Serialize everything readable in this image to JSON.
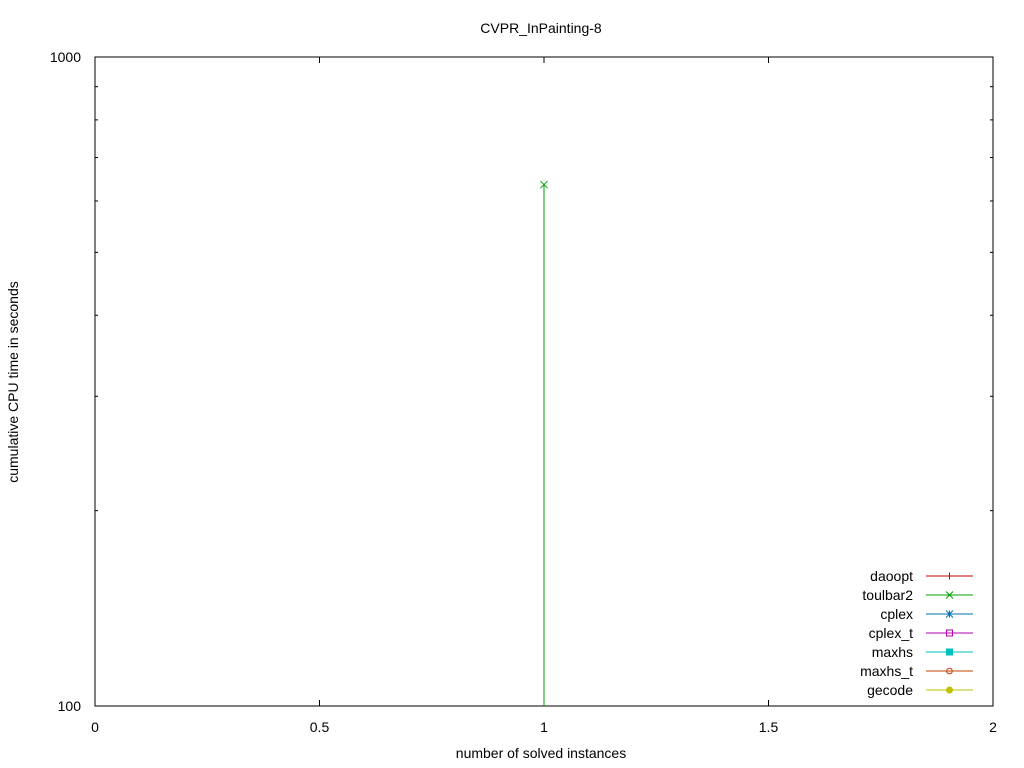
{
  "chart_data": {
    "type": "line",
    "title": "CVPR_InPainting-8",
    "xlabel": "number of solved instances",
    "ylabel": "cumulative CPU time in seconds",
    "xlim": [
      0,
      2
    ],
    "ylim": [
      100,
      1000
    ],
    "yscale": "log",
    "x_ticks": [
      0,
      0.5,
      1,
      1.5,
      2
    ],
    "x_tick_labels": [
      "0",
      "0.5",
      "1",
      "1.5",
      "2"
    ],
    "y_tick_labels": [
      "100",
      "1000"
    ],
    "grid": false,
    "legend_position": "bottom-right",
    "series": [
      {
        "name": "daoopt",
        "color": "#c00000",
        "marker": "plus",
        "points": []
      },
      {
        "name": "toulbar2",
        "color": "#00a000",
        "marker": "cross",
        "points": [
          [
            1,
            100
          ],
          [
            1,
            636
          ]
        ]
      },
      {
        "name": "cplex",
        "color": "#0070b0",
        "marker": "star",
        "points": []
      },
      {
        "name": "cplex_t",
        "color": "#b000b0",
        "marker": "square",
        "points": []
      },
      {
        "name": "maxhs",
        "color": "#00c0c0",
        "marker": "filled-square",
        "points": []
      },
      {
        "name": "maxhs_t",
        "color": "#c04000",
        "marker": "circle",
        "points": []
      },
      {
        "name": "gecode",
        "color": "#c0c000",
        "marker": "filled-circle",
        "points": []
      }
    ]
  }
}
